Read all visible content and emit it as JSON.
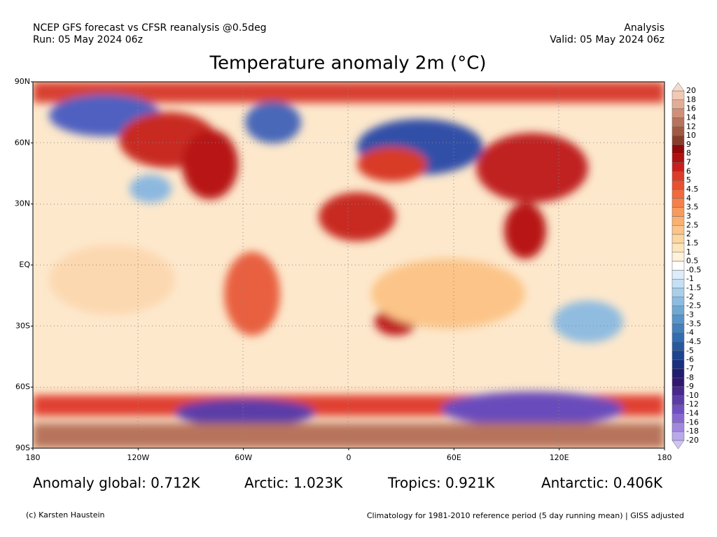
{
  "header": {
    "left": [
      "NCEP GFS forecast vs CFSR reanalysis @0.5deg",
      "Run: 05 May 2024 06z"
    ],
    "right": [
      "Analysis",
      "Valid: 05 May 2024 06z"
    ],
    "title": "Temperature anomaly 2m (°C)"
  },
  "map": {
    "lat_labels": [
      "90N",
      "60N",
      "30N",
      "EQ",
      "30S",
      "60S",
      "90S"
    ],
    "lon_labels": [
      "180",
      "120W",
      "60W",
      "0",
      "60E",
      "120E",
      "180"
    ]
  },
  "colorbar": {
    "labels": [
      "20",
      "18",
      "16",
      "14",
      "12",
      "10",
      "9",
      "8",
      "7",
      "6",
      "5",
      "4.5",
      "4",
      "3.5",
      "3",
      "2.5",
      "2",
      "1.5",
      "1",
      "0.5",
      "-0.5",
      "-1",
      "-1.5",
      "-2",
      "-2.5",
      "-3",
      "-3.5",
      "-4",
      "-4.5",
      "-5",
      "-6",
      "-7",
      "-8",
      "-9",
      "-10",
      "-12",
      "-14",
      "-16",
      "-18",
      "-20"
    ],
    "colors": [
      "#f2c9b4",
      "#e3ad95",
      "#d09078",
      "#b8735c",
      "#a05a44",
      "#8a3c2a",
      "#900808",
      "#b01010",
      "#c81e1e",
      "#de3a28",
      "#e85030",
      "#f06a3c",
      "#f5804a",
      "#f99a5c",
      "#fbb070",
      "#fcc488",
      "#fdd6a0",
      "#fee6bc",
      "#fff2d8",
      "#ffffff",
      "#dcecf8",
      "#c4e0f4",
      "#a8d0ec",
      "#8cbce0",
      "#70a8d4",
      "#5894c8",
      "#4480bc",
      "#346cb0",
      "#2858a0",
      "#1c4490",
      "#183080",
      "#201c70",
      "#301870",
      "#48288c",
      "#5c3ca8",
      "#7050c0",
      "#8868d0",
      "#a088e0",
      "#b8a8ec"
    ],
    "top_color": "#f6dccc",
    "bottom_color": "#d0c4f4"
  },
  "stats": [
    "Anomaly global: 0.712K",
    "Arctic: 1.023K",
    "Tropics: 0.921K",
    "Antarctic: 0.406K"
  ],
  "footer": {
    "left": "(c) Karsten Haustein",
    "right": "Climatology for 1981-2010 reference period (5 day running mean) | GISS adjusted"
  }
}
